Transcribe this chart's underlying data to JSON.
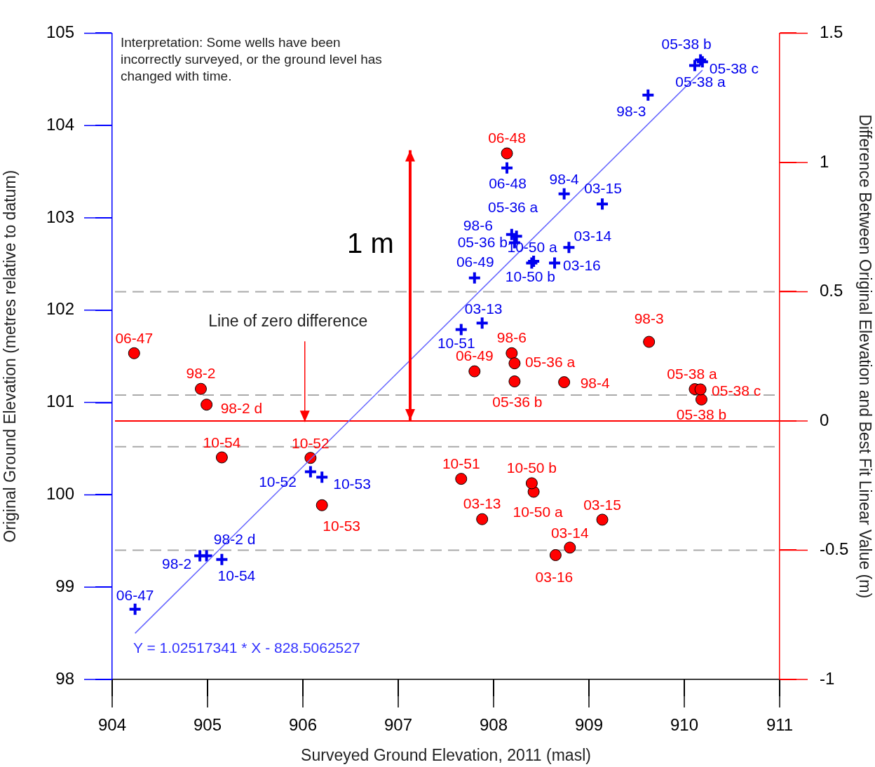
{
  "chart_data": {
    "type": "scatter",
    "xlabel": "Surveyed Ground Elevation, 2011 (masl)",
    "ylabel": "Original Ground Elevation (metres relative to datum)",
    "y2label": "Difference Between Original Elevation and Best Fit Linear Value (m)",
    "annotations": [
      "Interpretation: Some wells have been incorrectly surveyed, or the ground level has changed with time.",
      "1 m",
      {
        "text": "Line of zero difference",
        "x": 906.02,
        "y": 100.79
      },
      "Y = 1.02517341 * X - 828.5062527"
    ],
    "legend": false,
    "xlim": [
      904,
      911
    ],
    "ylim": [
      98,
      105
    ],
    "y2lim": [
      -1,
      1.5
    ],
    "xticks": [
      904,
      905,
      906,
      907,
      908,
      909,
      910,
      911
    ],
    "yticks": [
      98,
      99,
      100,
      101,
      102,
      103,
      104,
      105
    ],
    "y2ticks": [
      -1,
      -0.5,
      0,
      0.5,
      1,
      1.5
    ],
    "ref_lines": [
      {
        "axis": "y2",
        "value": 0.5,
        "color": "#aaaaaa",
        "line_style": "dashed"
      },
      {
        "axis": "y2",
        "value": 0.1,
        "color": "#aaaaaa",
        "line_style": "dashed"
      },
      {
        "axis": "y2",
        "value": -0.1,
        "color": "#aaaaaa",
        "line_style": "dashed"
      },
      {
        "axis": "y2",
        "value": -0.5,
        "color": "#aaaaaa",
        "line_style": "dashed"
      },
      {
        "axis": "y2",
        "value": 0,
        "color": "#ff0000",
        "line_style": "solid"
      }
    ],
    "series": [
      {
        "type": "line",
        "color": "#6666ff",
        "marker": "none",
        "x": [
          904.24,
          910.19
        ],
        "values": [
          98.5,
          104.6
        ]
      },
      {
        "type": "scatter",
        "color": "#0000ee",
        "marker": "cross",
        "x": [
          904.24,
          904.92,
          904.99,
          905.15,
          906.08,
          906.2,
          907.66,
          907.88,
          907.8,
          908.19,
          908.24,
          908.22,
          908.14,
          908.42,
          908.4,
          908.64,
          908.79,
          908.74,
          909.14,
          909.62,
          910.11,
          910.17,
          910.19
        ],
        "values": [
          98.76,
          99.34,
          99.34,
          99.3,
          100.25,
          100.19,
          101.79,
          101.86,
          102.35,
          102.82,
          102.8,
          102.73,
          103.54,
          102.53,
          102.51,
          102.51,
          102.68,
          103.26,
          103.15,
          104.33,
          104.65,
          104.71,
          104.69
        ],
        "value_labels": [
          "06-47",
          "98-2",
          "98-2 d",
          "10-54",
          "10-52",
          "10-53",
          "10-51",
          "03-13",
          "06-49",
          "98-6",
          "05-36 a",
          "05-36 b",
          "06-48",
          "10-50 a",
          "10-50 b",
          "03-16",
          "03-14",
          "98-4",
          "03-15",
          "98-3",
          "05-38 a",
          "05-38 b",
          "05-38 c"
        ]
      },
      {
        "type": "scatter",
        "color": "#ff0000",
        "marker": "circle",
        "axis": "y2",
        "x": [
          904.23,
          904.93,
          904.99,
          905.15,
          906.08,
          906.2,
          907.66,
          907.88,
          907.8,
          908.19,
          908.22,
          908.22,
          908.14,
          908.42,
          908.4,
          908.65,
          908.8,
          908.74,
          909.14,
          909.63,
          910.11,
          910.18,
          910.17
        ],
        "values": [
          0.262,
          0.124,
          0.063,
          -0.141,
          -0.143,
          -0.326,
          -0.224,
          -0.38,
          0.192,
          0.262,
          0.223,
          0.153,
          1.035,
          -0.274,
          -0.241,
          -0.519,
          -0.49,
          0.15,
          -0.382,
          0.306,
          0.123,
          0.083,
          0.122
        ],
        "value_labels": [
          "06-47",
          "98-2",
          "98-2 d",
          "10-54",
          "10-52",
          "10-53",
          "10-51",
          "03-13",
          "06-49",
          "98-6",
          "05-36 a",
          "05-36 b",
          "06-48",
          "10-50 a",
          "10-50 b",
          "03-16",
          "03-14",
          "98-4",
          "03-15",
          "98-3",
          "05-38 a",
          "05-38 b",
          "05-38 c"
        ]
      }
    ]
  }
}
